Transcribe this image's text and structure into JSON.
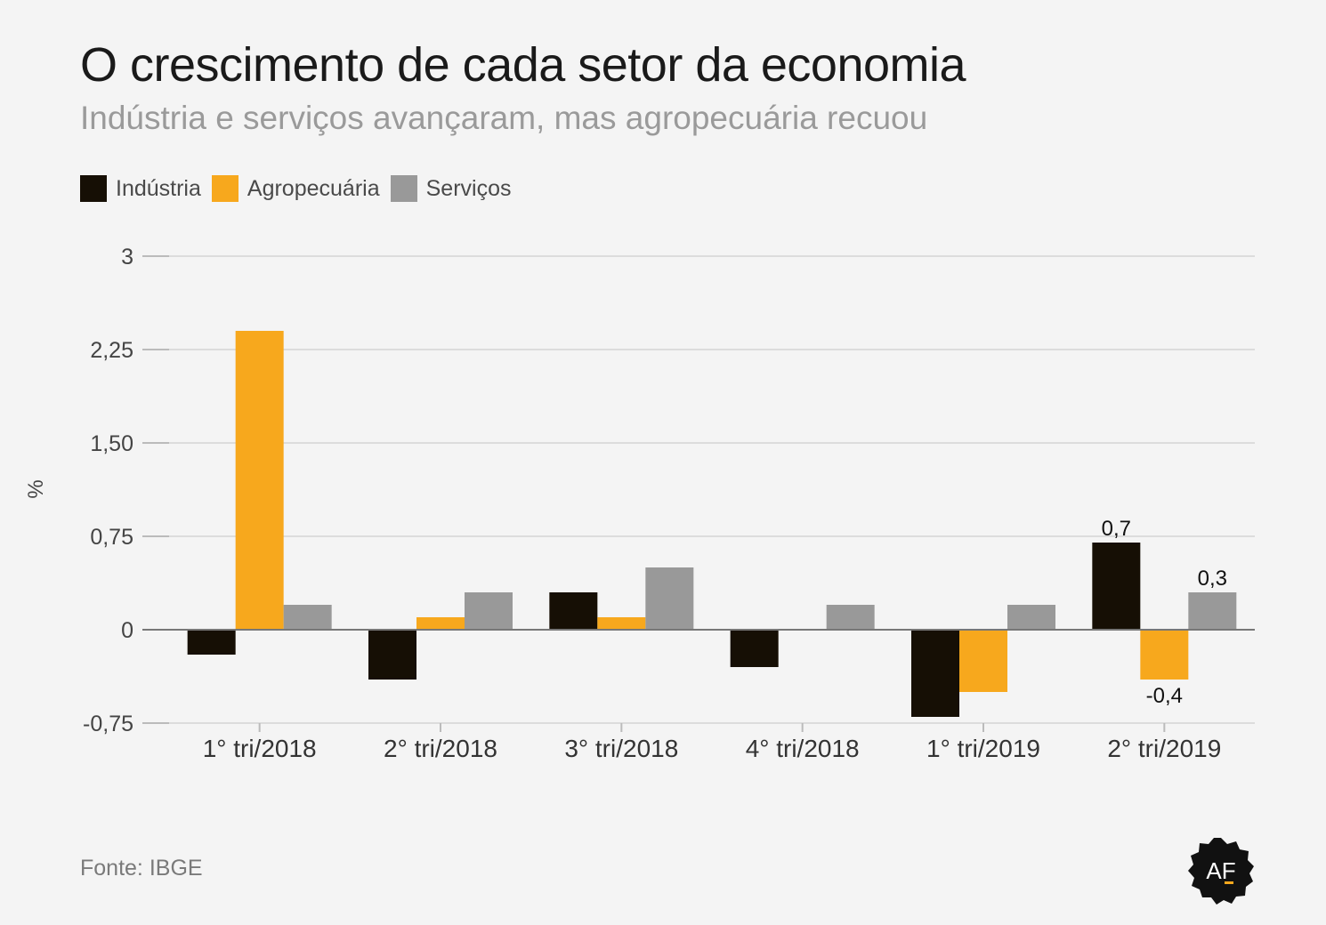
{
  "header": {
    "title": "O crescimento de cada setor da economia",
    "subtitle": "Indústria e serviços avançaram, mas agropecuária recuou"
  },
  "footer": {
    "source": "Fonte: IBGE",
    "logo_text": "AF",
    "logo_icon": "af-badge-icon"
  },
  "chart_data": {
    "type": "bar",
    "categories": [
      "1° tri/2018",
      "2° tri/2018",
      "3° tri/2018",
      "4° tri/2018",
      "1° tri/2019",
      "2° tri/2019"
    ],
    "series": [
      {
        "name": "Indústria",
        "color": "#160f05",
        "values": [
          -0.2,
          -0.4,
          0.3,
          -0.3,
          -0.7,
          0.7
        ]
      },
      {
        "name": "Agropecuária",
        "color": "#f7a81d",
        "values": [
          2.4,
          0.1,
          0.1,
          0.0,
          -0.5,
          -0.4
        ]
      },
      {
        "name": "Serviços",
        "color": "#999999",
        "values": [
          0.2,
          0.3,
          0.5,
          0.2,
          0.2,
          0.3
        ]
      }
    ],
    "ylabel": "%",
    "xlabel": "",
    "ylim": [
      -0.75,
      3
    ],
    "yticks": [
      3,
      2.25,
      1.5,
      0.75,
      0,
      -0.75
    ],
    "ytick_labels": [
      "3",
      "2,25",
      "1,50",
      "0,75",
      "0",
      "-0,75"
    ],
    "grid": true,
    "legend_position": "top-left",
    "data_labels": [
      {
        "series": 0,
        "category": 5,
        "text": "0,7"
      },
      {
        "series": 1,
        "category": 5,
        "text": "-0,4"
      },
      {
        "series": 2,
        "category": 5,
        "text": "0,3"
      }
    ]
  }
}
